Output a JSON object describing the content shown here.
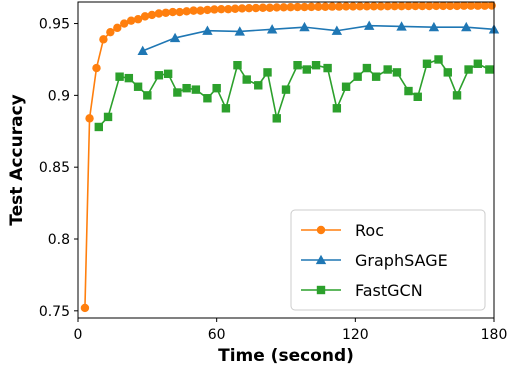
{
  "chart_data": {
    "type": "line",
    "title": "",
    "xlabel": "Time (second)",
    "ylabel": "Test Accuracy",
    "xlim": [
      0,
      180
    ],
    "ylim": [
      0.745,
      0.965
    ],
    "x_ticks": [
      0,
      60,
      120,
      180
    ],
    "y_ticks": [
      0.75,
      0.8,
      0.85,
      0.9,
      0.95
    ],
    "x_tick_labels": [
      "0",
      "60",
      "120",
      "180"
    ],
    "y_tick_labels": [
      "0.75",
      "0.8",
      "0.85",
      "0.9",
      "0.95"
    ],
    "grid": false,
    "legend_position": "lower-right",
    "series": [
      {
        "name": "Roc",
        "color": "#ff7f0e",
        "marker": "circle",
        "x": [
          3,
          5,
          8,
          11,
          14,
          17,
          20,
          23,
          26,
          29,
          32,
          35,
          38,
          41,
          44,
          47,
          50,
          53,
          56,
          59,
          62,
          65,
          68,
          71,
          74,
          77,
          80,
          83,
          86,
          89,
          92,
          95,
          98,
          101,
          104,
          107,
          110,
          113,
          116,
          119,
          122,
          125,
          128,
          131,
          134,
          137,
          140,
          143,
          146,
          149,
          152,
          155,
          158,
          161,
          164,
          167,
          170,
          173,
          176,
          179
        ],
        "y": [
          0.752,
          0.884,
          0.919,
          0.939,
          0.944,
          0.947,
          0.95,
          0.952,
          0.953,
          0.955,
          0.956,
          0.957,
          0.9575,
          0.958,
          0.958,
          0.9585,
          0.959,
          0.959,
          0.9595,
          0.9598,
          0.96,
          0.96,
          0.9603,
          0.9605,
          0.9607,
          0.9608,
          0.961,
          0.961,
          0.9612,
          0.9613,
          0.9614,
          0.9615,
          0.9615,
          0.9616,
          0.9617,
          0.9617,
          0.9618,
          0.9618,
          0.9619,
          0.9619,
          0.962,
          0.962,
          0.962,
          0.962,
          0.9621,
          0.9621,
          0.9621,
          0.9622,
          0.9622,
          0.9622,
          0.9622,
          0.9623,
          0.9623,
          0.9623,
          0.9623,
          0.9624,
          0.9624,
          0.9624,
          0.9624,
          0.9625
        ]
      },
      {
        "name": "GraphSAGE",
        "color": "#1f77b4",
        "marker": "triangle",
        "x": [
          28,
          42,
          56,
          70,
          84,
          98,
          112,
          126,
          140,
          154,
          168,
          180
        ],
        "y": [
          0.931,
          0.94,
          0.945,
          0.9445,
          0.946,
          0.9475,
          0.945,
          0.9485,
          0.948,
          0.9475,
          0.9475,
          0.946
        ]
      },
      {
        "name": "FastGCN",
        "color": "#2ca02c",
        "marker": "square",
        "x": [
          9,
          13,
          18,
          22,
          26,
          30,
          35,
          39,
          43,
          47,
          51,
          56,
          60,
          64,
          69,
          73,
          78,
          82,
          86,
          90,
          95,
          99,
          103,
          108,
          112,
          116,
          121,
          125,
          129,
          134,
          138,
          143,
          147,
          151,
          156,
          160,
          164,
          169,
          173,
          178
        ],
        "y": [
          0.878,
          0.885,
          0.913,
          0.912,
          0.906,
          0.9,
          0.914,
          0.915,
          0.902,
          0.905,
          0.904,
          0.898,
          0.905,
          0.891,
          0.921,
          0.911,
          0.907,
          0.916,
          0.884,
          0.904,
          0.921,
          0.918,
          0.921,
          0.919,
          0.891,
          0.906,
          0.913,
          0.919,
          0.913,
          0.918,
          0.916,
          0.903,
          0.899,
          0.922,
          0.925,
          0.916,
          0.9,
          0.918,
          0.922,
          0.918
        ]
      }
    ]
  }
}
